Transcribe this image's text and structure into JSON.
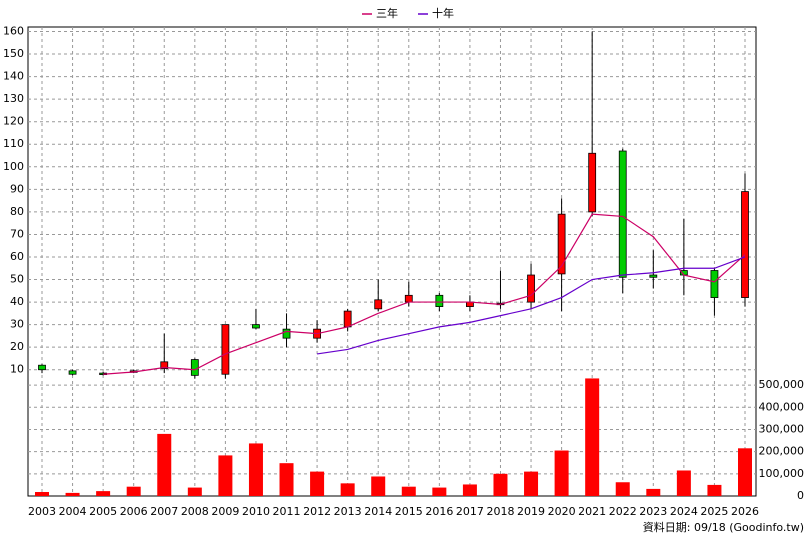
{
  "chart_data": {
    "type": "candlestick",
    "categories": [
      "2003",
      "2004",
      "2005",
      "2006",
      "2007",
      "2008",
      "2009",
      "2010",
      "2011",
      "2012",
      "2013",
      "2014",
      "2015",
      "2016",
      "2017",
      "2018",
      "2019",
      "2020",
      "2021",
      "2022",
      "2023",
      "2024",
      "2025",
      "2026"
    ],
    "open": [
      12,
      9.5,
      8.5,
      9,
      10.5,
      14.5,
      8,
      30,
      28,
      24,
      29,
      37,
      40,
      43,
      38,
      39.5,
      40,
      52.5,
      80,
      107,
      52,
      54,
      54,
      42
    ],
    "high": [
      12.5,
      10,
      9,
      10,
      26,
      15,
      30,
      37,
      35,
      32,
      37,
      50,
      49,
      44,
      43,
      54,
      57,
      86,
      160,
      108,
      63,
      77,
      55,
      97
    ],
    "low": [
      8.5,
      7.5,
      7.5,
      8.5,
      8.5,
      6,
      6,
      28,
      20,
      22,
      27,
      36,
      38,
      36,
      36,
      37,
      37,
      36,
      78,
      44,
      46,
      43,
      34,
      38
    ],
    "close": [
      10,
      8,
      8,
      9.5,
      13.5,
      7.5,
      30,
      28.5,
      24,
      28,
      36,
      41,
      43,
      38,
      40,
      39,
      52,
      79,
      106,
      51,
      51,
      52,
      42,
      89
    ],
    "up_color": "#ff0000",
    "down_color": "#00cc00",
    "series": [
      {
        "name": "三年",
        "color": "#cc0066",
        "values": [
          null,
          null,
          8,
          9,
          11,
          10,
          17,
          22,
          27,
          26,
          29,
          35,
          40,
          40,
          40,
          39,
          43,
          56,
          79,
          78,
          69,
          52,
          49,
          61
        ]
      },
      {
        "name": "十年",
        "color": "#6600cc",
        "values": [
          null,
          null,
          null,
          null,
          null,
          null,
          null,
          null,
          null,
          17,
          19,
          23,
          26,
          29,
          31,
          34,
          37,
          42,
          50,
          52,
          53,
          55,
          55,
          60
        ]
      }
    ],
    "volume": {
      "color": "#ff0000",
      "axis": "y2",
      "values": [
        18000,
        14000,
        22000,
        42000,
        280000,
        38000,
        183000,
        237000,
        148000,
        110000,
        57000,
        88000,
        42000,
        38000,
        52000,
        100000,
        110000,
        205000,
        530000,
        62000,
        32000,
        115000,
        50000,
        215000
      ]
    },
    "ylim": [
      5,
      162
    ],
    "yticks": [
      10,
      20,
      30,
      40,
      50,
      60,
      70,
      80,
      90,
      100,
      110,
      120,
      130,
      140,
      150,
      160
    ],
    "y2lim": [
      0,
      550000
    ],
    "y2ticks": [
      0,
      {
        "value": 100000,
        "label": "100,000"
      },
      {
        "value": 200000,
        "label": "200,000"
      },
      {
        "value": 300000,
        "label": "300,000"
      },
      {
        "value": 400000,
        "label": "400,000"
      },
      {
        "value": 500000,
        "label": "500,000"
      }
    ],
    "grid": true,
    "footer": "資料日期: 09/18 (Goodinfo.tw)"
  }
}
